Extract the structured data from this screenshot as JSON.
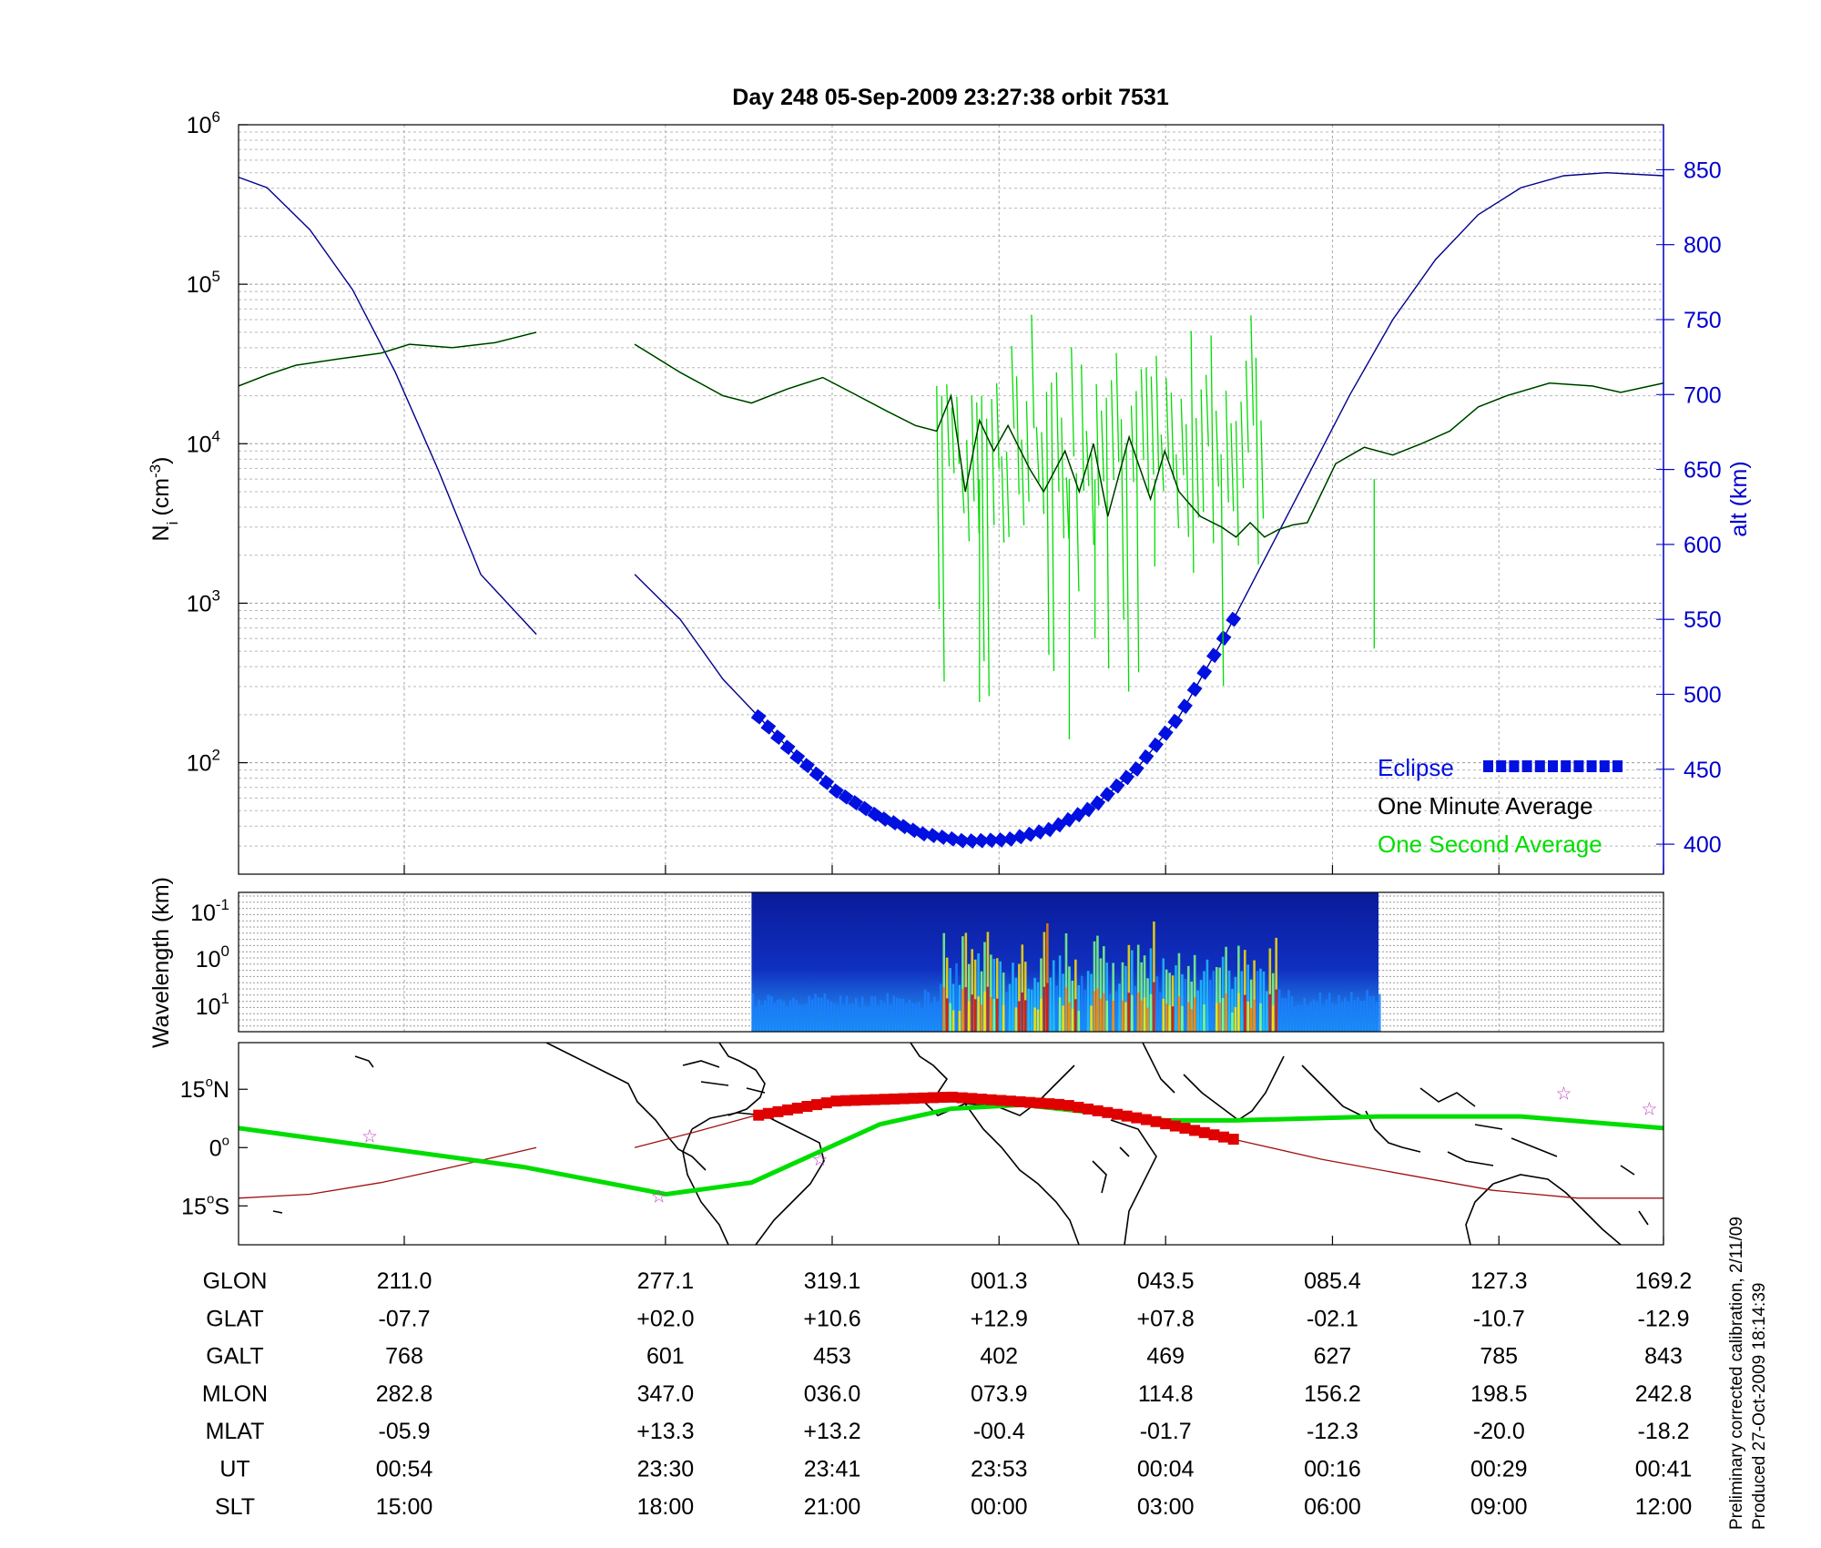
{
  "title": "Day 248  05-Sep-2009 23:27:38   orbit 7531",
  "colors": {
    "eclipse": "#0010e0",
    "minute": "#000000",
    "second": "#00dd00",
    "altitude": "#00008b",
    "groundtrack": "#00dd00",
    "orbit_trace": "#a01010",
    "eclipse_track": "#e00000",
    "axis_right": "#0000cc"
  },
  "chart_data": [
    {
      "type": "line",
      "name": "density-panel",
      "ylabel": "N",
      "ylabel_sub": "i",
      "ylabel_unit": "(cm",
      "ylabel_exp": "-3",
      "ylabel_close": ")",
      "yscale": "log",
      "ylim": [
        20,
        1000000
      ],
      "yticks": [
        {
          "base": "10",
          "exp": "2",
          "value": 100
        },
        {
          "base": "10",
          "exp": "3",
          "value": 1000
        },
        {
          "base": "10",
          "exp": "4",
          "value": 10000
        },
        {
          "base": "10",
          "exp": "5",
          "value": 100000
        },
        {
          "base": "10",
          "exp": "6",
          "value": 1000000
        }
      ],
      "y2label": "alt (km)",
      "y2lim": [
        380,
        880
      ],
      "y2ticks": [
        "400",
        "450",
        "500",
        "550",
        "600",
        "650",
        "700",
        "750",
        "800",
        "850"
      ],
      "y2tick_values": [
        400,
        450,
        500,
        550,
        600,
        650,
        700,
        750,
        800,
        850
      ],
      "grid": true,
      "legend_placement": "bottom-right",
      "legend": [
        {
          "label": "Eclipse",
          "key": "eclipse"
        },
        {
          "label": "One Minute Average",
          "key": "minute"
        },
        {
          "label": "One Second Average",
          "key": "second"
        }
      ],
      "xlim": [
        0,
        1
      ],
      "x_major": [
        0.1163,
        0.2996,
        0.4166,
        0.5337,
        0.6506,
        0.7677,
        0.8845,
        1.0
      ],
      "density_points": [
        [
          0.0,
          23000
        ],
        [
          0.02,
          27000
        ],
        [
          0.04,
          31000
        ],
        [
          0.07,
          34000
        ],
        [
          0.1,
          37000
        ],
        [
          0.12,
          42000
        ],
        [
          0.15,
          40000
        ],
        [
          0.18,
          43000
        ],
        [
          0.209,
          50000
        ],
        [
          null,
          null
        ],
        [
          0.278,
          42000
        ],
        [
          0.31,
          28000
        ],
        [
          0.34,
          20000
        ],
        [
          0.36,
          18000
        ],
        [
          0.385,
          22000
        ],
        [
          0.41,
          26000
        ],
        [
          0.43,
          21000
        ],
        [
          0.455,
          16000
        ],
        [
          0.475,
          13000
        ],
        [
          0.49,
          12000
        ],
        [
          0.5,
          20000
        ],
        [
          0.51,
          5000
        ],
        [
          0.52,
          14000
        ],
        [
          0.53,
          9000
        ],
        [
          0.54,
          13000
        ],
        [
          0.555,
          7000
        ],
        [
          0.565,
          5000
        ],
        [
          0.58,
          9000
        ],
        [
          0.59,
          5000
        ],
        [
          0.6,
          10000
        ],
        [
          0.61,
          3500
        ],
        [
          0.625,
          11000
        ],
        [
          0.64,
          4500
        ],
        [
          0.65,
          9000
        ],
        [
          0.66,
          5000
        ],
        [
          0.675,
          3500
        ],
        [
          0.69,
          3000
        ],
        [
          0.7,
          2600
        ],
        [
          0.71,
          3200
        ],
        [
          0.72,
          2600
        ],
        [
          0.73,
          2900
        ],
        [
          0.74,
          3100
        ],
        [
          0.75,
          3200
        ],
        [
          0.77,
          7500
        ],
        [
          0.79,
          9500
        ],
        [
          0.81,
          8500
        ],
        [
          0.83,
          10000
        ],
        [
          0.85,
          12000
        ],
        [
          0.87,
          17000
        ],
        [
          0.89,
          20000
        ],
        [
          0.92,
          24000
        ],
        [
          0.95,
          23000
        ],
        [
          0.97,
          21000
        ],
        [
          1.0,
          24000
        ]
      ],
      "altitude_points": [
        [
          0.0,
          845
        ],
        [
          0.02,
          838
        ],
        [
          0.05,
          810
        ],
        [
          0.08,
          770
        ],
        [
          0.11,
          715
        ],
        [
          0.14,
          650
        ],
        [
          0.17,
          580
        ],
        [
          0.209,
          540
        ],
        [
          null,
          null
        ],
        [
          0.278,
          580
        ],
        [
          0.31,
          550
        ],
        [
          0.34,
          510
        ],
        [
          0.36,
          490
        ],
        [
          0.39,
          460
        ],
        [
          0.42,
          435
        ],
        [
          0.45,
          418
        ],
        [
          0.48,
          407
        ],
        [
          0.51,
          402
        ],
        [
          0.54,
          403
        ],
        [
          0.57,
          410
        ],
        [
          0.6,
          425
        ],
        [
          0.63,
          450
        ],
        [
          0.66,
          485
        ],
        [
          0.69,
          535
        ],
        [
          0.72,
          590
        ],
        [
          0.75,
          645
        ],
        [
          0.78,
          700
        ],
        [
          0.81,
          750
        ],
        [
          0.84,
          790
        ],
        [
          0.87,
          820
        ],
        [
          0.9,
          838
        ],
        [
          0.93,
          846
        ],
        [
          0.96,
          848
        ],
        [
          1.0,
          846
        ]
      ],
      "eclipse_range": [
        0.365,
        0.705
      ]
    },
    {
      "type": "heatmap",
      "name": "spectrogram-panel",
      "ylabel": "Wavelength (km)",
      "yticks": [
        {
          "base": "10",
          "exp": "-1"
        },
        {
          "base": "10",
          "exp": "0"
        },
        {
          "base": "10",
          "exp": "1"
        }
      ],
      "data_range": [
        0.36,
        0.8
      ]
    },
    {
      "type": "line",
      "name": "ground-track-panel",
      "yticks": [
        {
          "value": "15",
          "unit": "N",
          "deg": 15
        },
        {
          "value": "0",
          "unit": "",
          "deg": 0
        },
        {
          "value": "15",
          "unit": "S",
          "deg": -15
        }
      ],
      "ylim": [
        -25,
        27
      ],
      "footprint_points": [
        [
          0.0,
          5
        ],
        [
          0.1,
          0
        ],
        [
          0.2,
          -5
        ],
        [
          0.3,
          -12
        ],
        [
          0.36,
          -9
        ],
        [
          0.45,
          6
        ],
        [
          0.5,
          10
        ],
        [
          0.55,
          11
        ],
        [
          0.6,
          9
        ],
        [
          0.65,
          7
        ],
        [
          0.7,
          7
        ],
        [
          0.8,
          8
        ],
        [
          0.9,
          8
        ],
        [
          1.0,
          5
        ]
      ],
      "orbit_trace_points": [
        [
          0.0,
          -13
        ],
        [
          0.05,
          -12
        ],
        [
          0.1,
          -9
        ],
        [
          0.15,
          -5
        ],
        [
          0.209,
          0
        ],
        [
          null,
          null
        ],
        [
          0.278,
          0
        ],
        [
          0.32,
          4
        ],
        [
          0.36,
          8
        ],
        [
          0.42,
          12
        ],
        [
          0.5,
          13
        ],
        [
          0.58,
          11
        ],
        [
          0.64,
          7
        ],
        [
          0.7,
          2
        ],
        [
          0.76,
          -3
        ],
        [
          0.82,
          -7
        ],
        [
          0.88,
          -11
        ],
        [
          0.94,
          -13
        ],
        [
          1.0,
          -13
        ]
      ],
      "markers": [
        [
          0.092,
          3
        ],
        [
          0.295,
          -12.5
        ],
        [
          0.408,
          -3
        ],
        [
          0.93,
          14
        ],
        [
          0.99,
          10
        ]
      ]
    }
  ],
  "ephemeris": {
    "columns": [
      "GLON",
      "GLAT",
      "GALT",
      "MLON",
      "MLAT",
      "UT",
      "SLT"
    ],
    "rows": [
      [
        "211.0",
        "-07.7",
        "768",
        "282.8",
        "-05.9",
        "00:54",
        "15:00"
      ],
      [
        "277.1",
        "+02.0",
        "601",
        "347.0",
        "+13.3",
        "23:30",
        "18:00"
      ],
      [
        "319.1",
        "+10.6",
        "453",
        "036.0",
        "+13.2",
        "23:41",
        "21:00"
      ],
      [
        "001.3",
        "+12.9",
        "402",
        "073.9",
        "-00.4",
        "23:53",
        "00:00"
      ],
      [
        "043.5",
        "+07.8",
        "469",
        "114.8",
        "-01.7",
        "00:04",
        "03:00"
      ],
      [
        "085.4",
        "-02.1",
        "627",
        "156.2",
        "-12.3",
        "00:16",
        "06:00"
      ],
      [
        "127.3",
        "-10.7",
        "785",
        "198.5",
        "-20.0",
        "00:29",
        "09:00"
      ],
      [
        "169.2",
        "-12.9",
        "843",
        "242.8",
        "-18.2",
        "00:41",
        "12:00"
      ]
    ]
  },
  "footer": {
    "line1": "Preliminary corrected calibration, 2/11/09",
    "line2": "Produced 27-Oct-2009 18:14:39"
  }
}
